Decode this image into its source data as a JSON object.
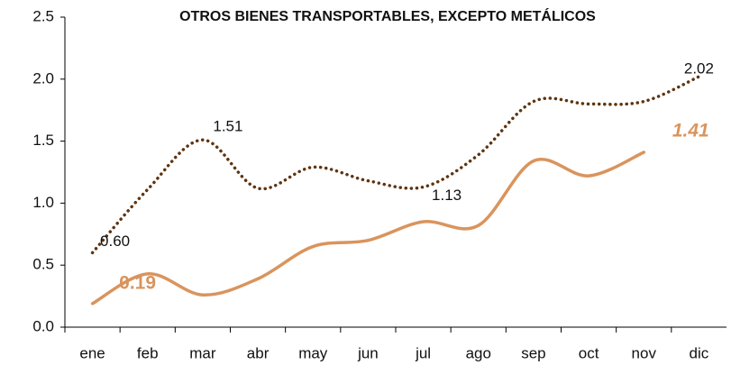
{
  "chart_data": {
    "type": "line",
    "title": "OTROS BIENES TRANSPORTABLES, EXCEPTO METÁLICOS",
    "categories": [
      "ene",
      "feb",
      "mar",
      "abr",
      "may",
      "jun",
      "jul",
      "ago",
      "sep",
      "oct",
      "nov",
      "dic"
    ],
    "series": [
      {
        "color": "#5e3410",
        "style": "dotted",
        "values": [
          0.6,
          1.11,
          1.51,
          1.12,
          1.29,
          1.18,
          1.13,
          1.39,
          1.82,
          1.8,
          1.82,
          2.02
        ],
        "value_labels": [
          "0.60",
          null,
          "1.51",
          null,
          null,
          null,
          "1.13",
          null,
          null,
          null,
          null,
          "2.02"
        ]
      },
      {
        "color": "#d9945d",
        "style": "solid",
        "values": [
          0.19,
          0.43,
          0.26,
          0.39,
          0.65,
          0.7,
          0.85,
          0.82,
          1.34,
          1.22,
          1.41,
          null
        ],
        "value_labels": [
          "0.19",
          null,
          null,
          null,
          null,
          null,
          null,
          null,
          null,
          null,
          "1.41",
          null
        ]
      }
    ],
    "ylim": [
      0,
      2.5
    ],
    "yticks": [
      {
        "value": 0,
        "label": "0.0"
      },
      0.5,
      {
        "value": 1,
        "label": "1.0"
      },
      1.5,
      {
        "value": 2,
        "label": "2.0"
      },
      2.5
    ],
    "grid": false
  }
}
